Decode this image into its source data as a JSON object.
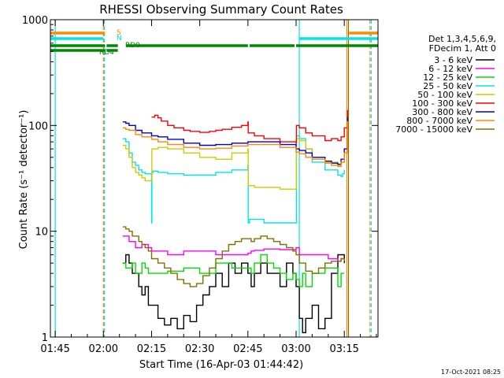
{
  "chart_data": {
    "type": "line",
    "title": "RHESSI Observing Summary Count Rates",
    "xlabel": "Start Time (16-Apr-03 01:44:42)",
    "ylabel": "Count Rate (s⁻¹ detector⁻¹)",
    "y_scale": "log",
    "ylim": [
      1,
      1000
    ],
    "xlim_minutes": [
      -1.5,
      100.5
    ],
    "x_ticks": [
      {
        "label": "01:45",
        "min": 0
      },
      {
        "label": "02:00",
        "min": 15
      },
      {
        "label": "02:15",
        "min": 30
      },
      {
        "label": "02:30",
        "min": 45
      },
      {
        "label": "02:45",
        "min": 60
      },
      {
        "label": "03:00",
        "min": 75
      },
      {
        "label": "03:15",
        "min": 90
      }
    ],
    "y_ticks": [
      {
        "label": "1",
        "value": 1
      },
      {
        "label": "10",
        "value": 10
      },
      {
        "label": "100",
        "value": 100
      },
      {
        "label": "1000",
        "value": 1000
      }
    ],
    "legend_header": [
      "Det 1,3,4,5,6,9,",
      "FDecim 1, Att 0"
    ],
    "legend_placement": "right",
    "footer_date": "17-Oct-2021 08:25",
    "series": [
      {
        "name": "3 - 6 keV",
        "color": "#000000",
        "x": [
          21,
          22,
          23,
          24,
          25,
          26,
          27,
          28,
          29,
          30,
          32,
          34,
          36,
          38,
          40,
          42,
          44,
          46,
          48,
          50,
          52,
          54,
          56,
          58,
          60,
          61,
          62,
          64,
          66,
          68,
          70,
          72,
          74,
          75,
          76,
          77,
          78,
          80,
          82,
          84,
          86,
          88,
          89,
          90
        ],
        "y": [
          5,
          6,
          5,
          4,
          4,
          3,
          2.5,
          3,
          2,
          2,
          1.5,
          1.3,
          1.5,
          1.2,
          1.6,
          1.4,
          2,
          2.5,
          3,
          4,
          3,
          5,
          4,
          5,
          4,
          3,
          4,
          5,
          4,
          4,
          3,
          5,
          4,
          3,
          1.5,
          1.1,
          1.5,
          2,
          1.2,
          1.5,
          4,
          6,
          6,
          5
        ]
      },
      {
        "name": "6 - 12 keV",
        "color": "#ff00ff",
        "x": [
          21,
          23,
          25,
          27,
          29,
          30,
          32,
          35,
          40,
          45,
          50,
          55,
          60,
          61,
          62,
          65,
          70,
          75,
          76,
          77,
          78,
          80,
          85,
          88,
          89,
          90
        ],
        "y": [
          9,
          8,
          7,
          7.5,
          7,
          6.5,
          6.5,
          6,
          6.5,
          6.5,
          6,
          6,
          6.2,
          6.5,
          6.6,
          6.8,
          6.7,
          7,
          6,
          6,
          6,
          6,
          5.5,
          5.2,
          5.5,
          5.5
        ]
      },
      {
        "name": "12 - 25 keV",
        "color": "#00dd00",
        "x": [
          21,
          22,
          23,
          24,
          25,
          26,
          27,
          28,
          29,
          30,
          32,
          35,
          40,
          45,
          50,
          55,
          60,
          61,
          62,
          64,
          66,
          68,
          70,
          72,
          74,
          75,
          76,
          77,
          78,
          80,
          84,
          88,
          89,
          90
        ],
        "y": [
          5,
          4.5,
          4.5,
          5,
          4,
          4,
          5,
          4.5,
          4,
          4,
          4,
          4.2,
          4.5,
          4,
          5,
          4.5,
          4.5,
          4,
          5,
          6,
          5,
          4.5,
          4,
          3.5,
          4,
          3.5,
          3,
          4,
          3,
          4,
          4.5,
          3,
          4,
          4
        ]
      },
      {
        "name": "25 - 50 keV",
        "color": "#00e5e5",
        "x": [
          21,
          22,
          23,
          24,
          25,
          26,
          27,
          28,
          29,
          30,
          30.1,
          30.5,
          32,
          35,
          40,
          45,
          50,
          55,
          60,
          60.1,
          60.5,
          65,
          70,
          74,
          75,
          75.1,
          76,
          78,
          80,
          84,
          88,
          89,
          89.5,
          90
        ],
        "y": [
          75,
          70,
          55,
          45,
          42,
          38,
          36,
          35,
          35,
          12,
          36,
          37,
          36,
          35,
          34,
          34,
          36,
          38,
          42,
          12,
          13,
          12,
          12,
          12,
          12,
          80,
          75,
          60,
          45,
          38,
          34,
          33,
          35,
          38
        ]
      },
      {
        "name": "50 - 100 keV",
        "color": "#cccc00",
        "x": [
          21,
          22,
          23,
          24,
          25,
          26,
          27,
          28,
          29,
          30,
          30.1,
          32,
          35,
          40,
          45,
          50,
          55,
          60,
          60.1,
          62,
          65,
          70,
          75,
          75.1,
          76,
          78,
          80,
          84,
          88,
          89,
          90
        ],
        "y": [
          65,
          60,
          50,
          40,
          36,
          34,
          32,
          30,
          30,
          30,
          60,
          62,
          60,
          55,
          50,
          48,
          55,
          60,
          27,
          26,
          26,
          25,
          25,
          75,
          72,
          60,
          50,
          45,
          42,
          45,
          50
        ]
      },
      {
        "name": "100 - 300 keV",
        "color": "#ff0000",
        "x": [
          30,
          31,
          32,
          33,
          35,
          37,
          40,
          42,
          45,
          48,
          50,
          52,
          55,
          58,
          60,
          60.1,
          62,
          65,
          70,
          75,
          75.1,
          76,
          78,
          80,
          84,
          86,
          88,
          89,
          90,
          91
        ],
        "y": [
          120,
          125,
          118,
          110,
          100,
          95,
          90,
          88,
          86,
          88,
          90,
          92,
          96,
          100,
          108,
          85,
          80,
          75,
          70,
          68,
          100,
          95,
          85,
          80,
          72,
          75,
          72,
          78,
          95,
          140
        ]
      },
      {
        "name": "300 - 800 keV",
        "color": "#0000cc",
        "x": [
          21,
          22,
          23,
          25,
          27,
          30,
          32,
          35,
          40,
          45,
          50,
          55,
          60,
          62,
          65,
          70,
          75,
          76,
          78,
          80,
          84,
          86,
          88,
          89,
          90,
          91
        ],
        "y": [
          108,
          105,
          100,
          90,
          85,
          80,
          78,
          74,
          68,
          65,
          66,
          68,
          70,
          70,
          70,
          66,
          60,
          58,
          55,
          50,
          46,
          44,
          43,
          48,
          60,
          120
        ]
      },
      {
        "name": "800 - 7000 keV",
        "color": "#ff8800",
        "x": [
          21,
          22,
          23,
          25,
          27,
          30,
          32,
          35,
          40,
          45,
          50,
          55,
          60,
          62,
          65,
          70,
          75,
          76,
          78,
          80,
          84,
          86,
          88,
          89,
          90,
          91
        ],
        "y": [
          95,
          92,
          90,
          82,
          78,
          74,
          70,
          66,
          62,
          60,
          61,
          64,
          66,
          66,
          66,
          62,
          56,
          54,
          50,
          48,
          44,
          42,
          41,
          45,
          55,
          110
        ]
      },
      {
        "name": "7000 - 15000 keV",
        "color": "#807000",
        "x": [
          21,
          22,
          23,
          24,
          25,
          26,
          27,
          28,
          29,
          30,
          32,
          34,
          36,
          38,
          40,
          42,
          44,
          46,
          48,
          50,
          52,
          54,
          56,
          58,
          60,
          61,
          62,
          64,
          66,
          68,
          70,
          72,
          74,
          75,
          76,
          78,
          80,
          82,
          84,
          86,
          88,
          89,
          90
        ],
        "y": [
          11,
          10.5,
          10,
          9,
          9,
          8,
          7.5,
          7,
          6.5,
          5.5,
          5,
          4.5,
          4,
          3.5,
          3.2,
          3,
          3.2,
          3.8,
          4.5,
          5.5,
          6.5,
          7.5,
          8,
          8.5,
          8.5,
          8,
          8.5,
          9,
          8.5,
          8,
          7.5,
          7,
          6.5,
          6,
          5,
          4.2,
          4,
          4.5,
          5,
          5.2,
          5.2,
          5.5,
          5.2
        ]
      }
    ],
    "state_labels": [
      {
        "text": "S",
        "color": "#ff8800"
      },
      {
        "text": "N",
        "color": "#00e5e5"
      },
      {
        "text": "RD0",
        "color": "#008800"
      },
      {
        "text": "RD4",
        "color": "#008800"
      }
    ],
    "state_bars": [
      {
        "label": "S",
        "color": "#ff8800",
        "segments": [
          [
            -1.5,
            15.5
          ],
          [
            91.5,
            100.5
          ]
        ]
      },
      {
        "label": "N",
        "color": "#00e5e5",
        "segments": [
          [
            -1.5,
            15
          ],
          [
            76,
            100.5
          ]
        ]
      },
      {
        "label": "RD0",
        "color": "#008800",
        "segments": [
          [
            -1.5,
            15.5
          ],
          [
            16,
            19.5
          ],
          [
            22,
            60
          ],
          [
            60.5,
            74.5
          ],
          [
            75,
            100.5
          ]
        ]
      },
      {
        "label": "RD4",
        "color": "#008800",
        "segments": [
          [
            -1.5,
            15.5
          ],
          [
            16,
            19.5
          ]
        ]
      }
    ],
    "vertical_lines": [
      {
        "min": 0,
        "color": "#00e5e5",
        "style": "solid"
      },
      {
        "min": 15,
        "color": "#ff8800",
        "style": "dashed"
      },
      {
        "min": 15.3,
        "color": "#00e5e5",
        "style": "dashed"
      },
      {
        "min": 76,
        "color": "#00e5e5",
        "style": "solid"
      },
      {
        "min": 90.8,
        "color": "#ff8800",
        "style": "solid"
      },
      {
        "min": 91.3,
        "color": "#807000",
        "style": "solid"
      },
      {
        "min": 98,
        "color": "#ff8800",
        "style": "dashed"
      },
      {
        "min": 98.4,
        "color": "#00e5e5",
        "style": "dashed"
      }
    ]
  }
}
